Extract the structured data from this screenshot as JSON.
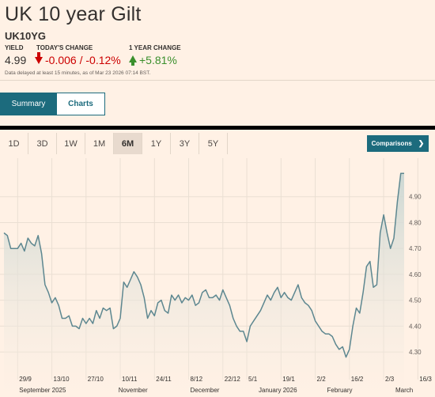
{
  "header": {
    "title": "UK 10 year Gilt",
    "symbol": "UK10YG"
  },
  "quote": {
    "yield_label": "YIELD",
    "yield_value": "4.99",
    "today_label": "TODAY'S CHANGE",
    "today_value": "-0.006 / -0.12%",
    "year_label": "1 YEAR CHANGE",
    "year_value": "+5.81%",
    "disclaimer": "Data delayed at least 15 minutes, as of Mar 23 2026 07:14 BST.",
    "colors": {
      "down": "#cc0000",
      "up": "#3a8f2c"
    }
  },
  "tabs": [
    {
      "label": "Summary",
      "active": true
    },
    {
      "label": "Charts",
      "active": false
    }
  ],
  "periods": [
    {
      "label": "1D",
      "active": false
    },
    {
      "label": "3D",
      "active": false
    },
    {
      "label": "1W",
      "active": false
    },
    {
      "label": "1M",
      "active": false
    },
    {
      "label": "6M",
      "active": true
    },
    {
      "label": "1Y",
      "active": false
    },
    {
      "label": "3Y",
      "active": false
    },
    {
      "label": "5Y",
      "active": false
    }
  ],
  "comparisons_label": "Comparisons",
  "chart_data": {
    "type": "area",
    "ylim": [
      4.23,
      5.0
    ],
    "y_ticks": [
      4.3,
      4.4,
      4.5,
      4.6,
      4.7,
      4.8,
      4.9
    ],
    "y_tick_labels": [
      "4.30",
      "4.40",
      "4.50",
      "4.60",
      "4.70",
      "4.80",
      "4.90"
    ],
    "grid": true,
    "x_ticks": [
      {
        "label": "29/9",
        "i": 4
      },
      {
        "label": "13/10",
        "i": 14
      },
      {
        "label": "27/10",
        "i": 24
      },
      {
        "label": "10/11",
        "i": 34
      },
      {
        "label": "24/11",
        "i": 44
      },
      {
        "label": "8/12",
        "i": 54
      },
      {
        "label": "22/12",
        "i": 64
      },
      {
        "label": "5/1",
        "i": 71
      },
      {
        "label": "19/1",
        "i": 81
      },
      {
        "label": "2/2",
        "i": 91
      },
      {
        "label": "16/2",
        "i": 101
      },
      {
        "label": "2/3",
        "i": 111
      },
      {
        "label": "16/3",
        "i": 121
      }
    ],
    "months": [
      {
        "label": "September 2025",
        "i": 4
      },
      {
        "label": "November",
        "i": 33
      },
      {
        "label": "December",
        "i": 54
      },
      {
        "label": "January 2026",
        "i": 74
      },
      {
        "label": "February",
        "i": 94
      },
      {
        "label": "March",
        "i": 114
      }
    ],
    "line_color": "#5d8790",
    "values": [
      4.76,
      4.75,
      4.7,
      4.7,
      4.7,
      4.72,
      4.69,
      4.74,
      4.72,
      4.71,
      4.75,
      4.68,
      4.56,
      4.53,
      4.49,
      4.51,
      4.48,
      4.43,
      4.43,
      4.44,
      4.4,
      4.4,
      4.39,
      4.43,
      4.41,
      4.43,
      4.41,
      4.46,
      4.43,
      4.47,
      4.46,
      4.47,
      4.39,
      4.4,
      4.43,
      4.57,
      4.55,
      4.58,
      4.61,
      4.59,
      4.56,
      4.51,
      4.43,
      4.46,
      4.44,
      4.49,
      4.5,
      4.46,
      4.45,
      4.52,
      4.5,
      4.52,
      4.49,
      4.51,
      4.5,
      4.52,
      4.48,
      4.49,
      4.53,
      4.54,
      4.51,
      4.51,
      4.52,
      4.5,
      4.54,
      4.51,
      4.48,
      4.43,
      4.4,
      4.38,
      4.38,
      4.34,
      4.4,
      4.42,
      4.44,
      4.46,
      4.49,
      4.52,
      4.5,
      4.53,
      4.55,
      4.51,
      4.53,
      4.51,
      4.5,
      4.53,
      4.56,
      4.51,
      4.49,
      4.48,
      4.46,
      4.42,
      4.4,
      4.38,
      4.37,
      4.37,
      4.36,
      4.33,
      4.31,
      4.32,
      4.28,
      4.31,
      4.4,
      4.47,
      4.45,
      4.53,
      4.63,
      4.65,
      4.55,
      4.56,
      4.76,
      4.83,
      4.76,
      4.7,
      4.74,
      4.88,
      4.99,
      4.99
    ]
  }
}
